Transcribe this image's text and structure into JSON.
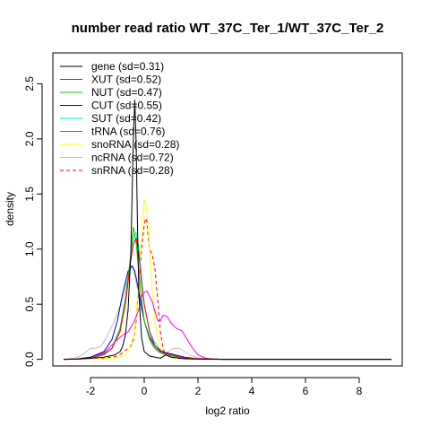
{
  "chart_data": {
    "type": "line",
    "title": "number read ratio WT_37C_Ter_1/WT_37C_Ter_2",
    "xlabel": "log2 ratio",
    "ylabel": "density",
    "xlim": [
      -3.4,
      9.6
    ],
    "ylim": [
      -0.06,
      2.78
    ],
    "x_ticks": [
      -2,
      0,
      2,
      4,
      6,
      8
    ],
    "y_ticks": [
      0.0,
      0.5,
      1.0,
      1.5,
      2.0,
      2.5
    ],
    "x_tick_labels": [
      "-2",
      "0",
      "2",
      "4",
      "6",
      "8"
    ],
    "y_tick_labels": [
      "0.0",
      "0.5",
      "1.0",
      "1.5",
      "2.0",
      "2.5"
    ],
    "grid": false,
    "legend_position": "top-left",
    "series": [
      {
        "name": "gene (sd=0.31)",
        "color": "#000000",
        "dash": "solid",
        "x": [
          -3,
          -2.5,
          -2,
          -1.5,
          -1.1,
          -0.9,
          -0.8,
          -0.7,
          -0.6,
          -0.5,
          -0.45,
          -0.4,
          -0.35,
          -0.3,
          -0.25,
          -0.2,
          -0.1,
          0,
          0.2,
          0.4,
          0.6,
          0.8,
          1.0,
          1.5,
          2,
          3,
          5,
          7,
          9.2
        ],
        "y": [
          0,
          0.002,
          0.01,
          0.02,
          0.04,
          0.07,
          0.12,
          0.22,
          0.45,
          0.95,
          1.5,
          2.05,
          2.35,
          1.95,
          1.2,
          0.6,
          0.2,
          0.07,
          0.03,
          0.02,
          0.01,
          0.04,
          0.02,
          0.005,
          0.002,
          0,
          0,
          0,
          0
        ]
      },
      {
        "name": "XUT (sd=0.52)",
        "color": "#ff0000",
        "dash": "solid",
        "x": [
          -3,
          -2.5,
          -2,
          -1.5,
          -1.2,
          -0.9,
          -0.7,
          -0.5,
          -0.4,
          -0.3,
          -0.2,
          -0.1,
          0,
          0.2,
          0.4,
          0.6,
          0.8,
          1.0,
          1.5,
          2,
          3,
          5,
          9.2
        ],
        "y": [
          0,
          0.002,
          0.01,
          0.05,
          0.1,
          0.25,
          0.5,
          0.9,
          1.05,
          1.1,
          0.95,
          0.7,
          0.5,
          0.25,
          0.12,
          0.07,
          0.05,
          0.04,
          0.01,
          0.005,
          0,
          0,
          0
        ]
      },
      {
        "name": "NUT (sd=0.47)",
        "color": "#00cc00",
        "dash": "solid",
        "x": [
          -3,
          -2.5,
          -2,
          -1.5,
          -1.2,
          -0.9,
          -0.7,
          -0.5,
          -0.45,
          -0.4,
          -0.3,
          -0.2,
          -0.1,
          0,
          0.2,
          0.4,
          0.6,
          0.8,
          1.0,
          1.5,
          2,
          3,
          5,
          9.2
        ],
        "y": [
          0,
          0.002,
          0.01,
          0.04,
          0.1,
          0.28,
          0.55,
          0.95,
          1.1,
          1.2,
          1.05,
          0.8,
          0.55,
          0.35,
          0.18,
          0.1,
          0.06,
          0.04,
          0.03,
          0.01,
          0.004,
          0,
          0,
          0
        ]
      },
      {
        "name": "CUT (sd=0.55)",
        "color": "#0000cc",
        "dash": "solid",
        "x": [
          -3,
          -2.5,
          -2,
          -1.5,
          -1.2,
          -1.0,
          -0.8,
          -0.6,
          -0.45,
          -0.35,
          -0.2,
          -0.1,
          0,
          0.2,
          0.4,
          0.6,
          0.8,
          1.0,
          1.5,
          2,
          3,
          5,
          9.2
        ],
        "y": [
          0,
          0.003,
          0.02,
          0.07,
          0.18,
          0.35,
          0.6,
          0.8,
          0.85,
          0.8,
          0.62,
          0.48,
          0.35,
          0.2,
          0.12,
          0.08,
          0.06,
          0.05,
          0.02,
          0.005,
          0,
          0,
          0
        ]
      },
      {
        "name": "SUT (sd=0.42)",
        "color": "#00e5e5",
        "dash": "solid",
        "x": [
          -3,
          -2.5,
          -2,
          -1.5,
          -1.2,
          -0.9,
          -0.7,
          -0.5,
          -0.4,
          -0.3,
          -0.2,
          -0.1,
          0,
          0.2,
          0.4,
          0.6,
          0.8,
          1.0,
          1.5,
          2,
          3,
          5,
          9.2
        ],
        "y": [
          0,
          0.002,
          0.01,
          0.04,
          0.1,
          0.28,
          0.55,
          0.95,
          1.12,
          1.15,
          1.0,
          0.75,
          0.5,
          0.25,
          0.15,
          0.08,
          0.05,
          0.04,
          0.01,
          0.004,
          0,
          0,
          0
        ]
      },
      {
        "name": "tRNA (sd=0.76)",
        "color": "#ff00ff",
        "dash": "solid",
        "x": [
          -3,
          -2.5,
          -2,
          -1.5,
          -1.2,
          -1.0,
          -0.8,
          -0.6,
          -0.4,
          -0.2,
          -0.05,
          0.1,
          0.3,
          0.5,
          0.6,
          0.7,
          0.85,
          1.0,
          1.2,
          1.4,
          1.6,
          1.8,
          2.0,
          2.3,
          2.6,
          3,
          5,
          9.2
        ],
        "y": [
          0,
          0.004,
          0.02,
          0.06,
          0.13,
          0.18,
          0.22,
          0.25,
          0.33,
          0.45,
          0.6,
          0.62,
          0.52,
          0.35,
          0.35,
          0.4,
          0.39,
          0.33,
          0.28,
          0.26,
          0.18,
          0.1,
          0.04,
          0.01,
          0.003,
          0,
          0,
          0
        ]
      },
      {
        "name": "snoRNA (sd=0.28)",
        "color": "#ffff00",
        "dash": "solid",
        "x": [
          -3,
          -2,
          -1.5,
          -1.0,
          -0.8,
          -0.6,
          -0.4,
          -0.3,
          -0.2,
          -0.1,
          0,
          0.1,
          0.2,
          0.3,
          0.4,
          0.5,
          0.6,
          0.8,
          1.0,
          1.5,
          2,
          3,
          5,
          9.2
        ],
        "y": [
          0,
          0.002,
          0.005,
          0.015,
          0.03,
          0.07,
          0.2,
          0.4,
          0.75,
          1.1,
          1.45,
          1.35,
          1.0,
          0.6,
          0.35,
          0.2,
          0.1,
          0.05,
          0.02,
          0.005,
          0,
          0,
          0,
          0
        ]
      },
      {
        "name": "ncRNA (sd=0.72)",
        "color": "#bebebe",
        "dash": "solid",
        "x": [
          -3,
          -2.6,
          -2.3,
          -2.0,
          -1.8,
          -1.6,
          -1.4,
          -1.2,
          -1.0,
          -0.8,
          -0.6,
          -0.45,
          -0.3,
          -0.1,
          0.1,
          0.3,
          0.5,
          0.7,
          0.9,
          1.1,
          1.3,
          1.5,
          1.7,
          2.0,
          2.3,
          3,
          5,
          9.2
        ],
        "y": [
          0,
          0.01,
          0.04,
          0.1,
          0.1,
          0.12,
          0.2,
          0.3,
          0.42,
          0.55,
          0.75,
          0.85,
          0.7,
          0.45,
          0.25,
          0.12,
          0.07,
          0.05,
          0.07,
          0.1,
          0.1,
          0.07,
          0.04,
          0.015,
          0.005,
          0,
          0,
          0
        ]
      },
      {
        "name": "snRNA (sd=0.28)",
        "color": "#ff0000",
        "dash": "dashed",
        "x": [
          -3,
          -2,
          -1.5,
          -1.0,
          -0.8,
          -0.6,
          -0.5,
          -0.4,
          -0.3,
          -0.2,
          -0.1,
          0,
          0.05,
          0.1,
          0.15,
          0.2,
          0.3,
          0.4,
          0.5,
          0.6,
          0.7,
          0.8,
          1.0,
          1.2,
          1.5,
          2,
          3,
          5,
          9.2
        ],
        "y": [
          0,
          0.003,
          0.01,
          0.03,
          0.06,
          0.1,
          0.12,
          0.18,
          0.35,
          0.7,
          1.0,
          1.22,
          1.28,
          1.25,
          1.1,
          1.0,
          0.95,
          0.82,
          0.55,
          0.25,
          0.1,
          0.04,
          0.02,
          0.01,
          0.005,
          0,
          0,
          0,
          0
        ]
      }
    ]
  }
}
